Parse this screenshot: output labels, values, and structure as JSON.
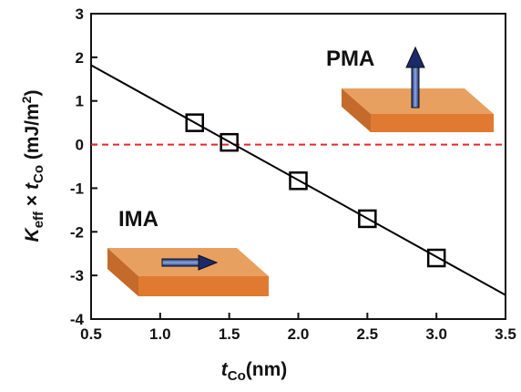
{
  "chart_data": {
    "type": "scatter",
    "xlabel_parts": [
      "t",
      "Co",
      "(nm)"
    ],
    "ylabel_parts": [
      "K",
      "eff",
      " × ",
      "t",
      "Co",
      " (mJ/m",
      "2",
      ")"
    ],
    "annotations": [
      "PMA",
      "IMA"
    ],
    "series": [
      {
        "x": [
          1.25,
          1.5,
          2.0,
          2.5,
          3.0
        ],
        "values": [
          0.5,
          0.05,
          -0.83,
          -1.7,
          -2.6
        ],
        "color": "#000000",
        "marker": "square"
      }
    ],
    "fit_line": {
      "x": [
        0.5,
        3.5
      ],
      "values": [
        1.82,
        -3.45
      ],
      "color": "#000000"
    },
    "reference_line": {
      "value": 0,
      "color": "#e8262a",
      "style": "dashed"
    },
    "xlim": [
      0.5,
      3.5
    ],
    "xticks": [
      {
        "value": 0.5,
        "label": "0.5"
      },
      {
        "value": 1.0,
        "label": "1.0"
      },
      {
        "value": 1.5,
        "label": "1.5"
      },
      {
        "value": 2.0,
        "label": "2.0"
      },
      {
        "value": 2.5,
        "label": "2.5"
      },
      {
        "value": 3.0,
        "label": "3.0"
      },
      {
        "value": 3.5,
        "label": "3.5"
      }
    ],
    "ylim": [
      -4,
      3
    ],
    "yticks": [
      -4,
      -3,
      -2,
      -1,
      0,
      1,
      2,
      3
    ]
  }
}
